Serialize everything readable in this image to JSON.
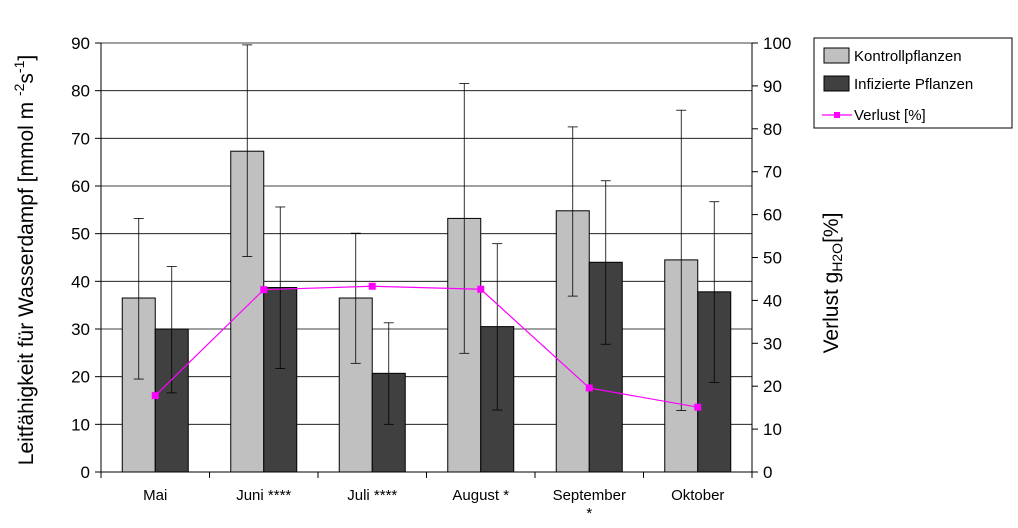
{
  "chart_data": {
    "type": "bar",
    "categories": [
      "Mai",
      "Juni ****",
      "Juli ****",
      "August *",
      "September *",
      "Oktober"
    ],
    "category_lines": [
      [
        "Mai"
      ],
      [
        "Juni ****"
      ],
      [
        "Juli ****"
      ],
      [
        "August *"
      ],
      [
        "September",
        "*"
      ],
      [
        "Oktober"
      ]
    ],
    "series": [
      {
        "name": "Kontrollpflanzen",
        "values": [
          36.5,
          67.3,
          36.5,
          53.2,
          54.8,
          44.5
        ],
        "err_low": [
          19.5,
          45.2,
          22.8,
          24.9,
          36.9,
          12.9
        ],
        "err_high": [
          53.2,
          89.6,
          50.1,
          81.5,
          72.4,
          75.9
        ],
        "color": "#c0c0c0"
      },
      {
        "name": "Infizierte Pflanzen",
        "values": [
          30.0,
          38.7,
          20.7,
          30.5,
          44.0,
          37.8
        ],
        "err_low": [
          16.6,
          21.7,
          10.0,
          13.0,
          26.8,
          18.8
        ],
        "err_high": [
          43.1,
          55.6,
          31.3,
          47.9,
          61.1,
          56.7
        ],
        "color": "#404040"
      }
    ],
    "line_series": {
      "name": "Verlust [%]",
      "values": [
        17.8,
        42.5,
        43.3,
        42.6,
        19.6,
        15.1
      ],
      "axis": "right",
      "color": "#ff00ff"
    },
    "ylabel_left": {
      "prefix": "Leitfähigkeit für Wasserdampf [mmol m ",
      "exp1": "-2",
      "mid": "s",
      "exp2": "-1",
      "suffix": "]"
    },
    "ylabel_right": {
      "main": "Verlust g",
      "sub": "H2O",
      "suffix": "[%]"
    },
    "ylim_left": [
      0,
      90
    ],
    "yticks_left": [
      "0",
      "10",
      "20",
      "30",
      "40",
      "50",
      "60",
      "70",
      "80",
      "90"
    ],
    "ylim_right": [
      0,
      100
    ],
    "yticks_right": [
      "0",
      "10",
      "20",
      "30",
      "40",
      "50",
      "60",
      "70",
      "80",
      "90",
      "100"
    ],
    "grid": true,
    "legend": {
      "position": "right",
      "entries": [
        "Kontrollpflanzen",
        "Infizierte Pflanzen",
        "Verlust [%]"
      ]
    }
  }
}
